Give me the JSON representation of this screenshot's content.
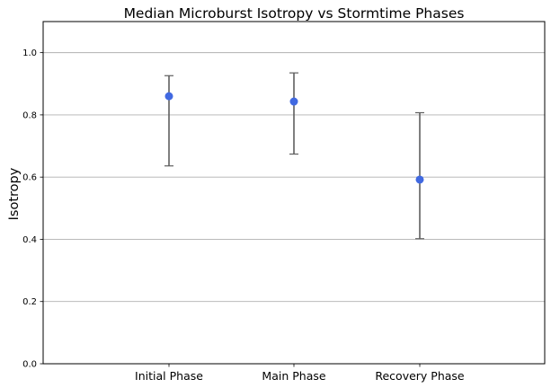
{
  "chart_data": {
    "type": "scatter",
    "title": "Median Microburst Isotropy vs Stormtime Phases",
    "xlabel": "",
    "ylabel": "Isotropy",
    "categories": [
      "Initial Phase",
      "Main Phase",
      "Recovery Phase"
    ],
    "series": [
      {
        "values": [
          0.86,
          0.843,
          0.592
        ],
        "lower": [
          0.636,
          0.674,
          0.402
        ],
        "upper": [
          0.926,
          0.935,
          0.807
        ]
      }
    ],
    "ylim": [
      0.0,
      1.1
    ],
    "yticks": [
      0.0,
      0.2,
      0.4,
      0.6,
      0.8,
      1.0
    ],
    "ytick_labels": [
      "0.0",
      "0.2",
      "0.4",
      "0.6",
      "0.8",
      "1.0"
    ],
    "grid": "horizontal",
    "colors": {
      "point": "#4169e1",
      "errorbar": "#5f5f5f",
      "grid": "#b0b0b0"
    }
  }
}
